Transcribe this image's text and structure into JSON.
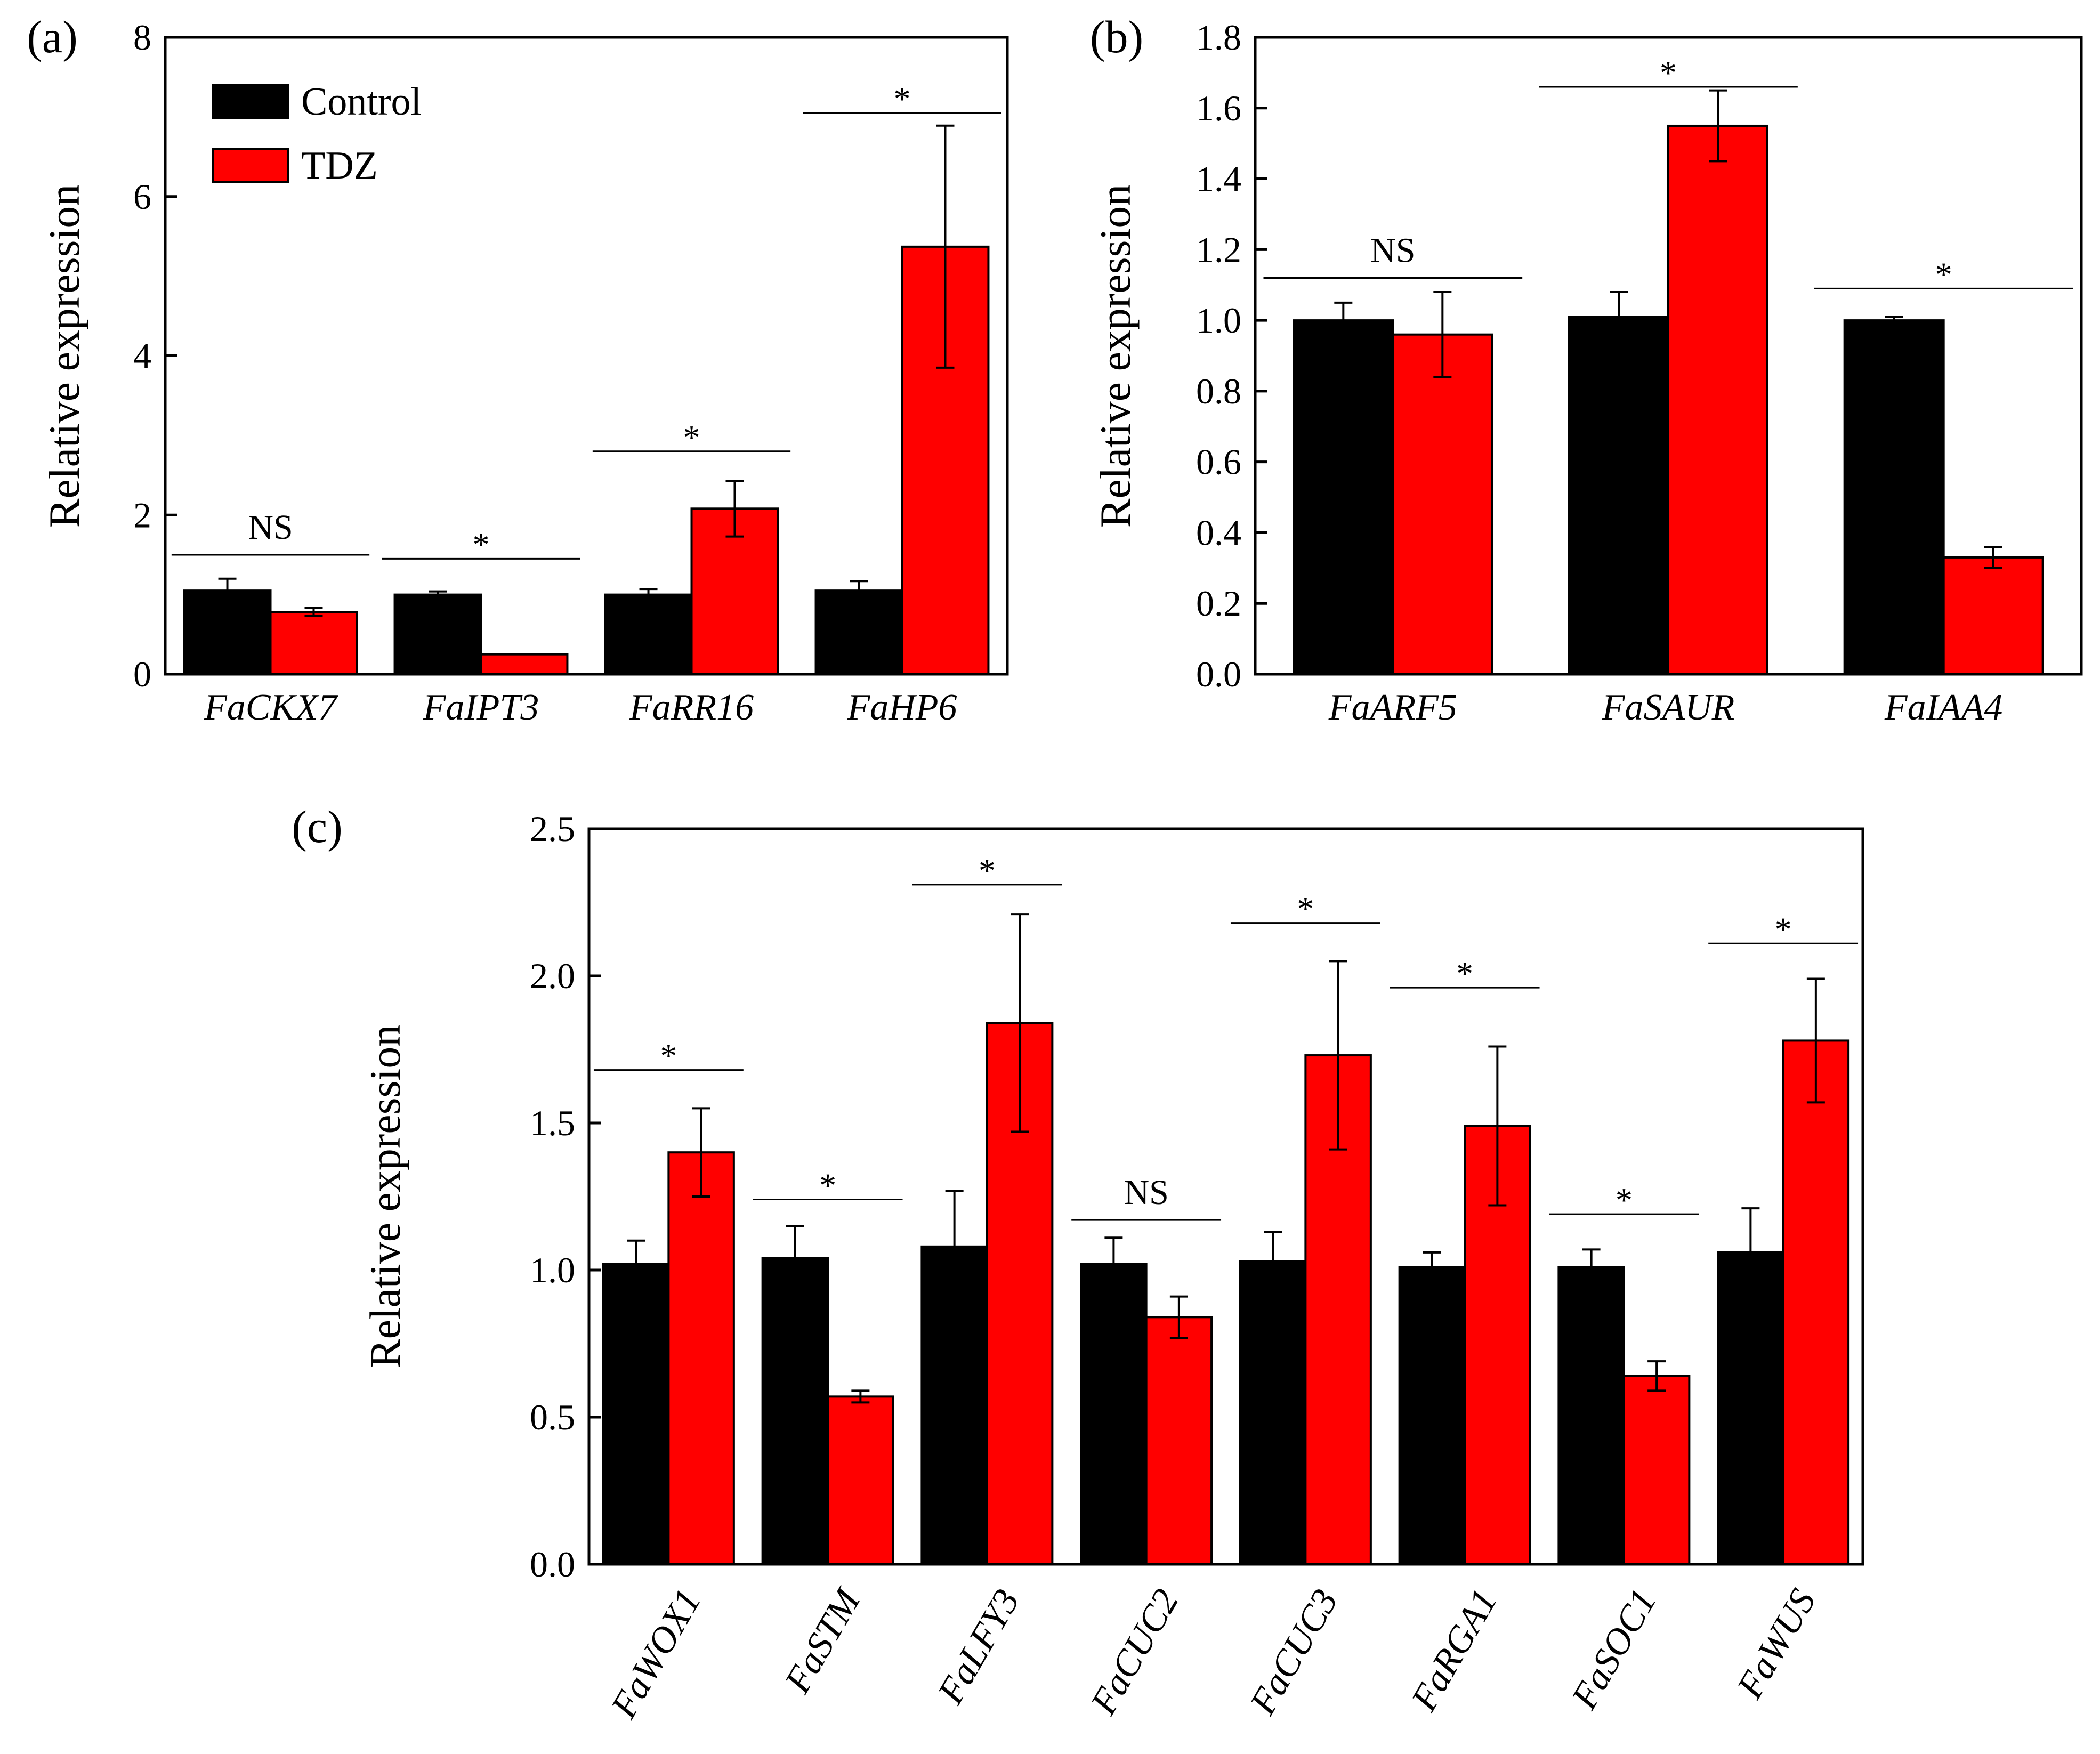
{
  "colors": {
    "control": "#000000",
    "tdz": "#ff0000",
    "axis": "#000000"
  },
  "chart_data": [
    {
      "panel": "(a)",
      "type": "bar",
      "ylabel": "Relative expression",
      "ylim": [
        0,
        8
      ],
      "yticks": [
        "0",
        "2",
        "4",
        "6",
        "8"
      ],
      "yticks_values": [
        0,
        2,
        4,
        6,
        8
      ],
      "categories": [
        "FaCKX7",
        "FaIPT3",
        "FaRR16",
        "FaHP6"
      ],
      "legend": {
        "placement": "top-left"
      },
      "series": [
        {
          "name": "Control",
          "values": [
            1.05,
            1.0,
            1.0,
            1.05
          ],
          "errors": [
            0.15,
            0.04,
            0.07,
            0.12
          ]
        },
        {
          "name": "TDZ",
          "values": [
            0.78,
            0.25,
            2.08,
            5.37
          ],
          "errors": [
            0.05,
            0.0,
            0.35,
            1.52
          ]
        }
      ],
      "significance": [
        "NS",
        "*",
        "*",
        "*"
      ],
      "sig_y": [
        1.5,
        1.45,
        2.8,
        7.05
      ]
    },
    {
      "panel": "(b)",
      "type": "bar",
      "ylabel": "Relative expression",
      "ylim": [
        0,
        1.8
      ],
      "yticks": [
        "0.0",
        "0.2",
        "0.4",
        "0.6",
        "0.8",
        "1.0",
        "1.2",
        "1.4",
        "1.6",
        "1.8"
      ],
      "yticks_values": [
        0,
        0.2,
        0.4,
        0.6,
        0.8,
        1.0,
        1.2,
        1.4,
        1.6,
        1.8
      ],
      "categories": [
        "FaARF5",
        "FaSAUR",
        "FaIAA4"
      ],
      "series": [
        {
          "name": "Control",
          "values": [
            1.0,
            1.01,
            1.0
          ],
          "errors": [
            0.05,
            0.07,
            0.01
          ]
        },
        {
          "name": "TDZ",
          "values": [
            0.96,
            1.55,
            0.33
          ],
          "errors": [
            0.12,
            0.1,
            0.03
          ]
        }
      ],
      "significance": [
        "NS",
        "*",
        "*"
      ],
      "sig_y": [
        1.12,
        1.66,
        1.09
      ]
    },
    {
      "panel": "(c)",
      "type": "bar",
      "ylabel": "Relative expression",
      "ylim": [
        0,
        2.5
      ],
      "yticks": [
        "0.0",
        "0.5",
        "1.0",
        "1.5",
        "2.0",
        "2.5"
      ],
      "yticks_values": [
        0,
        0.5,
        1.0,
        1.5,
        2.0,
        2.5
      ],
      "categories": [
        "FaWOX1",
        "FaSTM",
        "FaLFY3",
        "FaCUC2",
        "FaCUC3",
        "FaRGA1",
        "FaSOC1",
        "FaWUS"
      ],
      "series": [
        {
          "name": "Control",
          "values": [
            1.02,
            1.04,
            1.08,
            1.02,
            1.03,
            1.01,
            1.01,
            1.06
          ],
          "errors": [
            0.08,
            0.11,
            0.19,
            0.09,
            0.1,
            0.05,
            0.06,
            0.15
          ]
        },
        {
          "name": "TDZ",
          "values": [
            1.4,
            0.57,
            1.84,
            0.84,
            1.73,
            1.49,
            0.64,
            1.78
          ],
          "errors": [
            0.15,
            0.02,
            0.37,
            0.07,
            0.32,
            0.27,
            0.05,
            0.21
          ]
        }
      ],
      "significance": [
        "*",
        "*",
        "*",
        "NS",
        "*",
        "*",
        "*",
        "*"
      ],
      "sig_y": [
        1.68,
        1.24,
        2.31,
        1.17,
        2.18,
        1.96,
        1.19,
        2.11
      ]
    }
  ]
}
